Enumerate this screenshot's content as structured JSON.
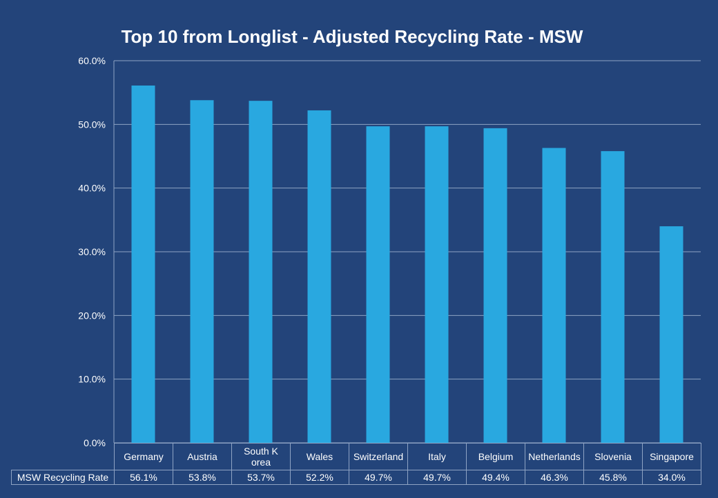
{
  "chart_data": {
    "type": "bar",
    "title": "Top 10 from Longlist - Adjusted Recycling Rate - MSW",
    "categories": [
      "Germany",
      "Austria",
      "South Korea",
      "Wales",
      "Switzerland",
      "Italy",
      "Belgium",
      "Netherlands",
      "Slovenia",
      "Singapore"
    ],
    "series": [
      {
        "name": "MSW Recycling Rate",
        "values": [
          56.1,
          53.8,
          53.7,
          52.2,
          49.7,
          49.7,
          49.4,
          46.3,
          45.8,
          34.0
        ],
        "value_labels": [
          "56.1%",
          "53.8%",
          "53.7%",
          "52.2%",
          "49.7%",
          "49.7%",
          "49.4%",
          "46.3%",
          "45.8%",
          "34.0%"
        ]
      }
    ],
    "y_ticks": [
      "0.0%",
      "10.0%",
      "20.0%",
      "30.0%",
      "40.0%",
      "50.0%",
      "60.0%"
    ],
    "ylim": [
      0,
      60
    ],
    "grid": true,
    "legend": "data table below chart",
    "colors": {
      "background": "#23447a",
      "bar": "#29a8e0",
      "grid": "#8fa4c4",
      "text": "#ffffff"
    }
  }
}
